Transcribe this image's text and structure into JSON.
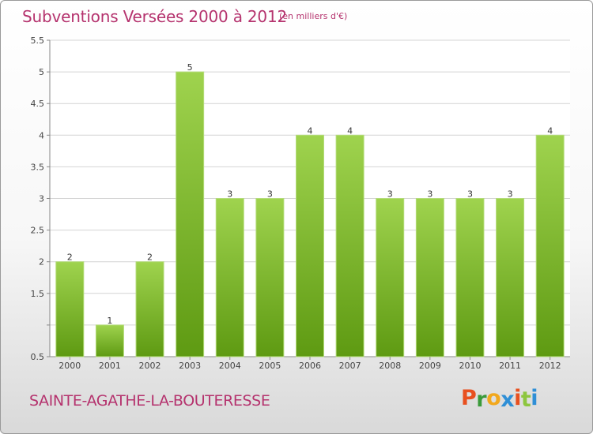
{
  "header": {
    "title": "Subventions Versées 2000 à 2012",
    "unit": "(en milliers d'€)"
  },
  "footer": {
    "commune": "SAINTE-AGATHE-LA-BOUTERESSE",
    "logo": [
      "P",
      "r",
      "o",
      "x",
      "i",
      "t",
      "i"
    ],
    "logo_colors": [
      "#e8501f",
      "#3a9a3a",
      "#f2a81d",
      "#2f8fd6",
      "#e8501f",
      "#8dc63f",
      "#2f8fd6"
    ]
  },
  "colors": {
    "bar_light": "#9fd34e",
    "bar_dark": "#5e9a12",
    "title": "#b5336e"
  },
  "chart_data": {
    "type": "bar",
    "categories": [
      "2000",
      "2001",
      "2002",
      "2003",
      "2004",
      "2005",
      "2006",
      "2007",
      "2008",
      "2009",
      "2010",
      "2011",
      "2012"
    ],
    "values": [
      2,
      1,
      2,
      5,
      3,
      3,
      4,
      4,
      3,
      3,
      3,
      3,
      4
    ],
    "data_labels": [
      "2",
      "1",
      "2",
      "5",
      "3",
      "3",
      "4",
      "4",
      "3",
      "3",
      "3",
      "3",
      "4"
    ],
    "title": "Subventions Versées 2000 à 2012",
    "xlabel": "",
    "ylabel": "",
    "ylim": [
      0.5,
      5.5
    ],
    "yticks": [
      0.5,
      1,
      1.5,
      2,
      2.5,
      3,
      3.5,
      4,
      4.5,
      5,
      5.5
    ],
    "ytick_labels": [
      "0.5",
      "",
      "1.5",
      "2",
      "2.5",
      "3",
      "3.5",
      "4",
      "4.5",
      "5",
      "5.5"
    ],
    "grid": true
  }
}
